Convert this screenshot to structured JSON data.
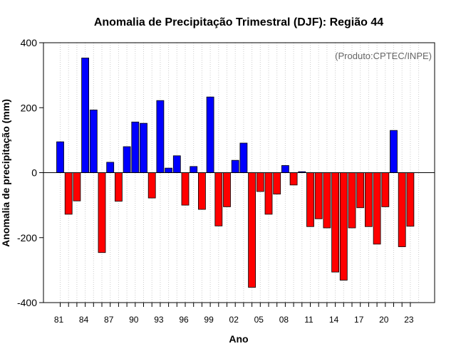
{
  "chart_data": {
    "type": "bar",
    "title": "Anomalia de Precipitação Trimestral (DJF): Região 44",
    "xlabel": "Ano",
    "ylabel": "Anomalia de precipitação (mm)",
    "annotation": "(Produto:CPTEC/INPE)",
    "ylim": [
      -400,
      400
    ],
    "yticks": [
      -400,
      -200,
      0,
      200,
      400
    ],
    "xtick_labels": [
      "81",
      "84",
      "87",
      "90",
      "93",
      "96",
      "99",
      "02",
      "05",
      "08",
      "11",
      "14",
      "17",
      "20",
      "23"
    ],
    "grid": "vertical dotted",
    "positive_color": "#0000ff",
    "negative_color": "#ff0000",
    "categories": [
      1981,
      1982,
      1983,
      1984,
      1985,
      1986,
      1987,
      1988,
      1989,
      1990,
      1991,
      1992,
      1993,
      1994,
      1995,
      1996,
      1997,
      1998,
      1999,
      2000,
      2001,
      2002,
      2003,
      2004,
      2005,
      2006,
      2007,
      2008,
      2009,
      2010,
      2011,
      2012,
      2013,
      2014,
      2015,
      2016,
      2017,
      2018,
      2019,
      2020,
      2021,
      2022,
      2023
    ],
    "values": [
      95,
      -128,
      -87,
      353,
      193,
      -246,
      32,
      -88,
      80,
      156,
      152,
      -78,
      222,
      14,
      52,
      -100,
      19,
      -113,
      233,
      -164,
      -105,
      38,
      91,
      -353,
      -58,
      -128,
      -66,
      22,
      -38,
      3,
      -166,
      -142,
      -170,
      -306,
      -331,
      -170,
      -108,
      -166,
      -220,
      -105,
      130,
      -228,
      -165
    ]
  }
}
